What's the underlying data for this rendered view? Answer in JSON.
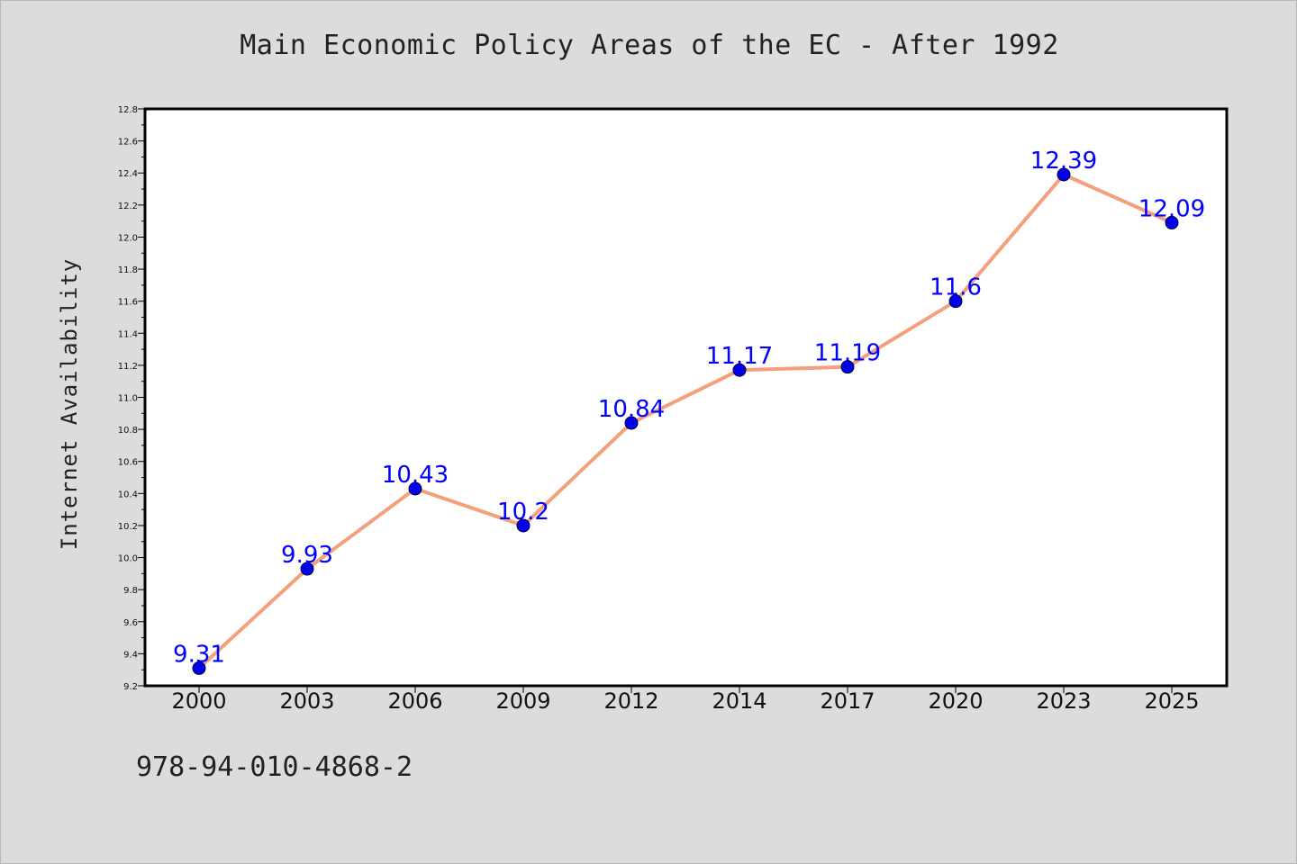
{
  "chart_data": {
    "type": "line",
    "title": "Main Economic Policy Areas of the EC - After 1992",
    "xlabel": "",
    "ylabel": "Internet Availability",
    "categories": [
      "2000",
      "2003",
      "2006",
      "2009",
      "2012",
      "2014",
      "2017",
      "2020",
      "2023",
      "2025"
    ],
    "series": [
      {
        "values": [
          9.31,
          9.93,
          10.43,
          10.2,
          10.84,
          11.17,
          11.19,
          11.6,
          12.39,
          12.09
        ],
        "data_labels": [
          "9.31",
          "9.93",
          "10.43",
          "10.2",
          "10.84",
          "11.17",
          "11.19",
          "11.6",
          "12.39",
          "12.09"
        ]
      }
    ],
    "ylim": [
      9.2,
      12.8
    ],
    "yticks": [
      "9.2",
      "9.4",
      "9.6",
      "9.8",
      "10.0",
      "10.2",
      "10.4",
      "10.6",
      "10.8",
      "11.0",
      "11.2",
      "11.4",
      "11.6",
      "11.8",
      "12.0",
      "12.2",
      "12.4",
      "12.6",
      "12.8"
    ],
    "grid": false,
    "legend": "none",
    "colors": {
      "line": "#f4a07c",
      "marker": "#0000ee",
      "marker_edge": "#000033",
      "data_label": "#0000ff",
      "background": "#dcdcdc",
      "plot_background": "#ffffff"
    }
  },
  "footer": {
    "code": "978-94-010-4868-2"
  }
}
